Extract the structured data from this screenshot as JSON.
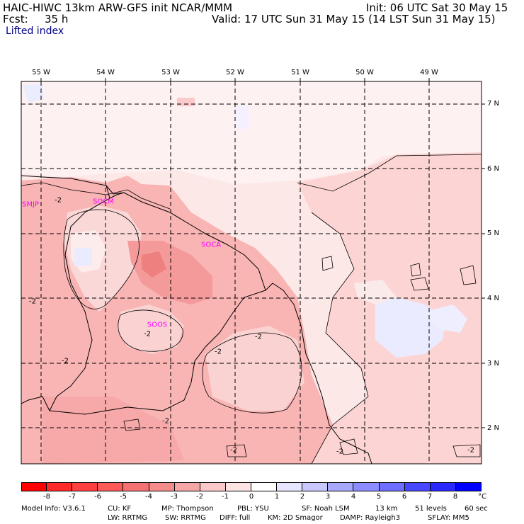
{
  "header": {
    "model_line": "HAIC-HIWC 13km ARW-GFS init   NCAR/MMM",
    "init_line": "Init: 06 UTC Sat 30 May 15",
    "fcst_label": "Fcst:",
    "fcst_value": "35 h",
    "valid_line": "Valid: 17 UTC Sun 31 May 15 (14 LST Sun 31 May 15)",
    "field_name": "Lifted index"
  },
  "map": {
    "longitude_labels": [
      "55 W",
      "54 W",
      "53 W",
      "52 W",
      "51 W",
      "50 W",
      "49 W"
    ],
    "latitude_labels": [
      "7 N",
      "6 N",
      "5 N",
      "4 N",
      "3 N",
      "2 N"
    ],
    "contour_labels": [
      "-2",
      "-2",
      "-2",
      "-2",
      "-2",
      "-2",
      "-2",
      "-2",
      "-2",
      "-2"
    ],
    "stations": [
      "SMJP",
      "SOCM",
      "SOCA",
      "SOOS"
    ],
    "colors": {
      "map_background": "#fde8e8",
      "coast_line": "#000000",
      "station_text": "#ff00ff"
    }
  },
  "colorbar": {
    "tick_labels": [
      "-8",
      "-7",
      "-6",
      "-5",
      "-4",
      "-3",
      "-2",
      "-1",
      "0",
      "1",
      "2",
      "3",
      "4",
      "5",
      "6",
      "7",
      "8"
    ],
    "unit": "°C",
    "colors": [
      "#ff0000",
      "#ff2a2a",
      "#ff4040",
      "#ff5a5a",
      "#f57272",
      "#f58c8c",
      "#f5a6a6",
      "#fac8c8",
      "#fde3e3",
      "#ffffff",
      "#e6e6ff",
      "#c8c8ff",
      "#a8a8ff",
      "#8c8cff",
      "#6e6eff",
      "#4848ff",
      "#2a2aff",
      "#0000ff"
    ]
  },
  "footer": {
    "model_info": "Model Info: V3.6.1",
    "cu": "CU: KF",
    "mp": "MP: Thompson",
    "pbl": "PBL: YSU",
    "sf": "SF: Noah LSM",
    "res": "13 km",
    "levels": "51 levels",
    "dt": "60 sec",
    "lw": "LW: RRTMG",
    "sw": "SW: RRTMG",
    "diff": "DIFF: full",
    "km": "KM: 2D Smagor",
    "damp": "DAMP: Rayleigh3",
    "sflay": "SFLAY: MM5"
  }
}
